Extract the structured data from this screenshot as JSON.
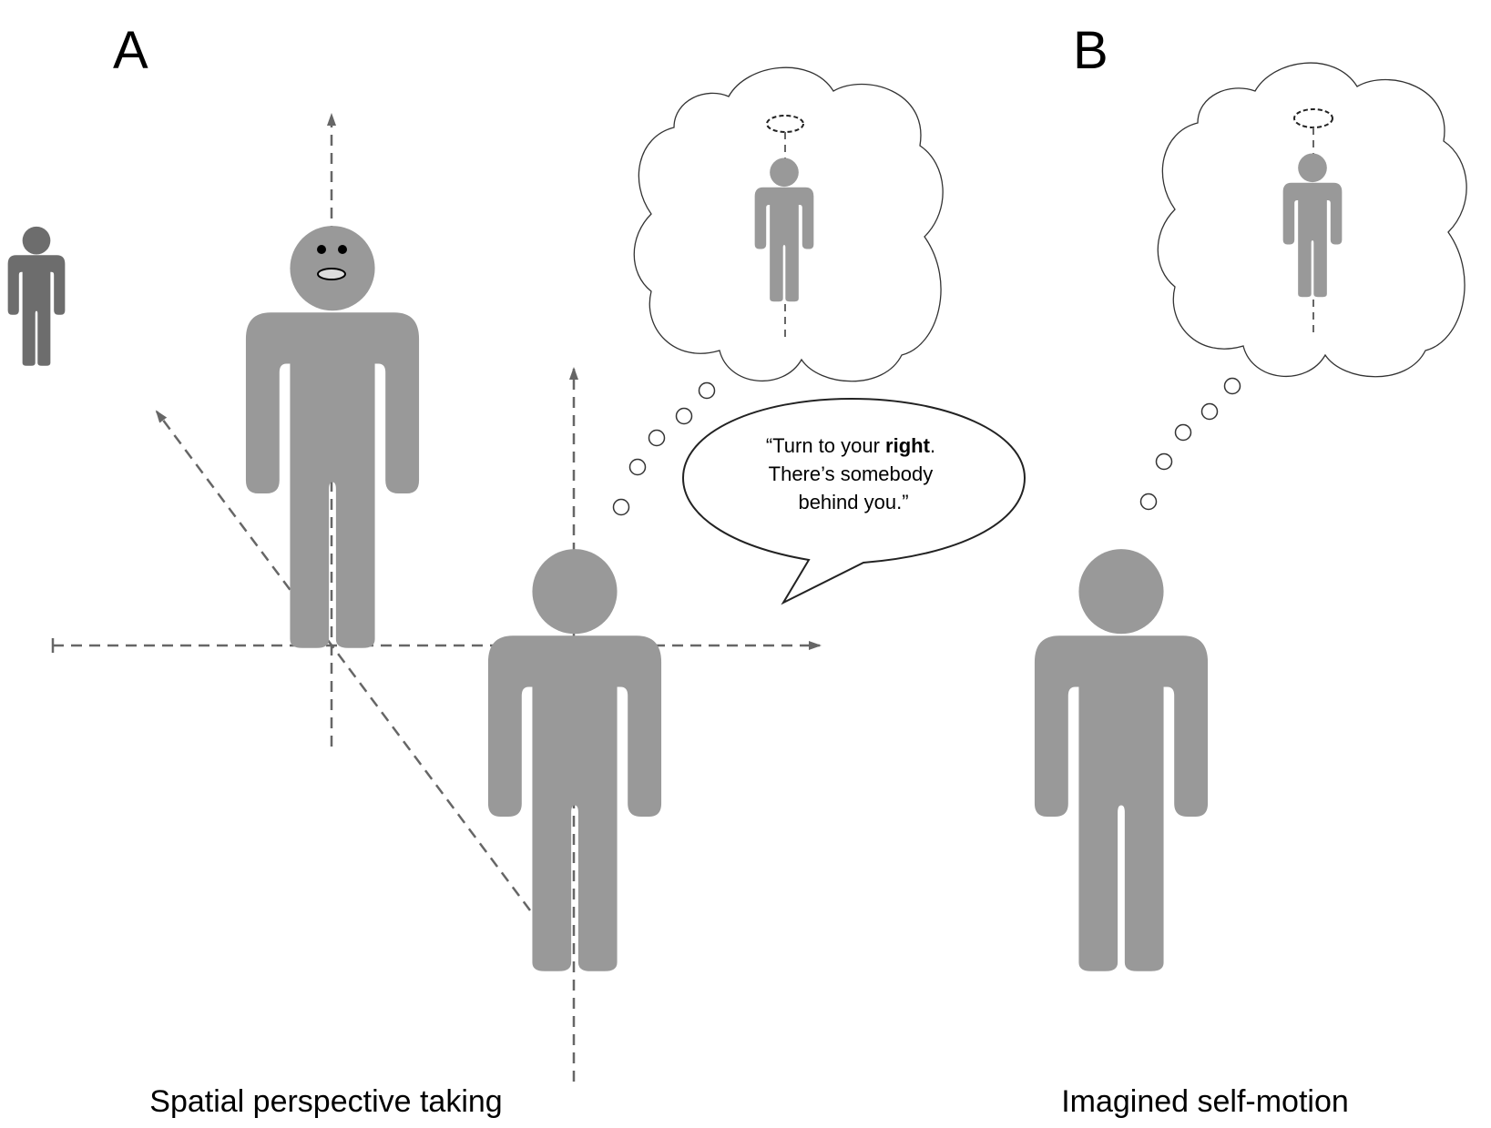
{
  "panels": {
    "a": {
      "label": "A",
      "caption": "Spatial perspective taking"
    },
    "b": {
      "label": "B",
      "caption": "Imagined self-motion"
    }
  },
  "speech_bubble": {
    "quote_open": "“Turn to your ",
    "bold": "right",
    "line1_end": ".",
    "line2": "There’s somebody",
    "line3": "behind you.”"
  },
  "colors": {
    "figure_gray": "#999999",
    "small_figure_gray": "#6d6d6d",
    "axis_gray": "#666666"
  },
  "icons": [
    "person-icon",
    "thought-cloud-icon",
    "speech-bubble-icon",
    "rotation-ellipse-icon"
  ]
}
